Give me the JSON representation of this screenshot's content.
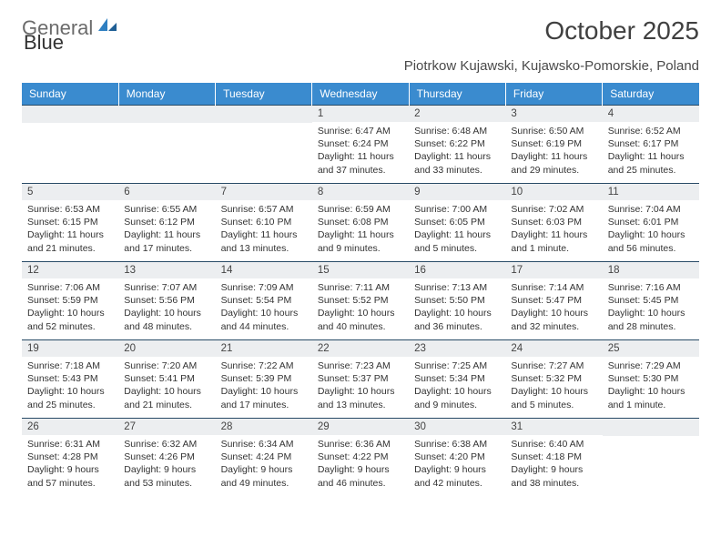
{
  "logo": {
    "word1": "General",
    "word2": "Blue"
  },
  "title": "October 2025",
  "location": "Piotrkow Kujawski, Kujawsko-Pomorskie, Poland",
  "style": {
    "header_bg": "#3a8bcf",
    "header_text": "#ffffff",
    "daynum_band_bg": "#eceef0",
    "rule_color": "#284a66",
    "body_text": "#333333",
    "title_color": "#404040",
    "logo_blue": "#2f7fc1",
    "logo_gray": "#6b6b6b",
    "title_fontsize": 28,
    "subtitle_fontsize": 15,
    "weekday_fontsize": 12,
    "daynum_fontsize": 11.5,
    "celltext_fontsize": 10.5
  },
  "weekdays": [
    "Sunday",
    "Monday",
    "Tuesday",
    "Wednesday",
    "Thursday",
    "Friday",
    "Saturday"
  ],
  "weeks": [
    [
      {
        "n": "",
        "sr": "",
        "ss": "",
        "dl": ""
      },
      {
        "n": "",
        "sr": "",
        "ss": "",
        "dl": ""
      },
      {
        "n": "",
        "sr": "",
        "ss": "",
        "dl": ""
      },
      {
        "n": "1",
        "sr": "Sunrise: 6:47 AM",
        "ss": "Sunset: 6:24 PM",
        "dl": "Daylight: 11 hours and 37 minutes."
      },
      {
        "n": "2",
        "sr": "Sunrise: 6:48 AM",
        "ss": "Sunset: 6:22 PM",
        "dl": "Daylight: 11 hours and 33 minutes."
      },
      {
        "n": "3",
        "sr": "Sunrise: 6:50 AM",
        "ss": "Sunset: 6:19 PM",
        "dl": "Daylight: 11 hours and 29 minutes."
      },
      {
        "n": "4",
        "sr": "Sunrise: 6:52 AM",
        "ss": "Sunset: 6:17 PM",
        "dl": "Daylight: 11 hours and 25 minutes."
      }
    ],
    [
      {
        "n": "5",
        "sr": "Sunrise: 6:53 AM",
        "ss": "Sunset: 6:15 PM",
        "dl": "Daylight: 11 hours and 21 minutes."
      },
      {
        "n": "6",
        "sr": "Sunrise: 6:55 AM",
        "ss": "Sunset: 6:12 PM",
        "dl": "Daylight: 11 hours and 17 minutes."
      },
      {
        "n": "7",
        "sr": "Sunrise: 6:57 AM",
        "ss": "Sunset: 6:10 PM",
        "dl": "Daylight: 11 hours and 13 minutes."
      },
      {
        "n": "8",
        "sr": "Sunrise: 6:59 AM",
        "ss": "Sunset: 6:08 PM",
        "dl": "Daylight: 11 hours and 9 minutes."
      },
      {
        "n": "9",
        "sr": "Sunrise: 7:00 AM",
        "ss": "Sunset: 6:05 PM",
        "dl": "Daylight: 11 hours and 5 minutes."
      },
      {
        "n": "10",
        "sr": "Sunrise: 7:02 AM",
        "ss": "Sunset: 6:03 PM",
        "dl": "Daylight: 11 hours and 1 minute."
      },
      {
        "n": "11",
        "sr": "Sunrise: 7:04 AM",
        "ss": "Sunset: 6:01 PM",
        "dl": "Daylight: 10 hours and 56 minutes."
      }
    ],
    [
      {
        "n": "12",
        "sr": "Sunrise: 7:06 AM",
        "ss": "Sunset: 5:59 PM",
        "dl": "Daylight: 10 hours and 52 minutes."
      },
      {
        "n": "13",
        "sr": "Sunrise: 7:07 AM",
        "ss": "Sunset: 5:56 PM",
        "dl": "Daylight: 10 hours and 48 minutes."
      },
      {
        "n": "14",
        "sr": "Sunrise: 7:09 AM",
        "ss": "Sunset: 5:54 PM",
        "dl": "Daylight: 10 hours and 44 minutes."
      },
      {
        "n": "15",
        "sr": "Sunrise: 7:11 AM",
        "ss": "Sunset: 5:52 PM",
        "dl": "Daylight: 10 hours and 40 minutes."
      },
      {
        "n": "16",
        "sr": "Sunrise: 7:13 AM",
        "ss": "Sunset: 5:50 PM",
        "dl": "Daylight: 10 hours and 36 minutes."
      },
      {
        "n": "17",
        "sr": "Sunrise: 7:14 AM",
        "ss": "Sunset: 5:47 PM",
        "dl": "Daylight: 10 hours and 32 minutes."
      },
      {
        "n": "18",
        "sr": "Sunrise: 7:16 AM",
        "ss": "Sunset: 5:45 PM",
        "dl": "Daylight: 10 hours and 28 minutes."
      }
    ],
    [
      {
        "n": "19",
        "sr": "Sunrise: 7:18 AM",
        "ss": "Sunset: 5:43 PM",
        "dl": "Daylight: 10 hours and 25 minutes."
      },
      {
        "n": "20",
        "sr": "Sunrise: 7:20 AM",
        "ss": "Sunset: 5:41 PM",
        "dl": "Daylight: 10 hours and 21 minutes."
      },
      {
        "n": "21",
        "sr": "Sunrise: 7:22 AM",
        "ss": "Sunset: 5:39 PM",
        "dl": "Daylight: 10 hours and 17 minutes."
      },
      {
        "n": "22",
        "sr": "Sunrise: 7:23 AM",
        "ss": "Sunset: 5:37 PM",
        "dl": "Daylight: 10 hours and 13 minutes."
      },
      {
        "n": "23",
        "sr": "Sunrise: 7:25 AM",
        "ss": "Sunset: 5:34 PM",
        "dl": "Daylight: 10 hours and 9 minutes."
      },
      {
        "n": "24",
        "sr": "Sunrise: 7:27 AM",
        "ss": "Sunset: 5:32 PM",
        "dl": "Daylight: 10 hours and 5 minutes."
      },
      {
        "n": "25",
        "sr": "Sunrise: 7:29 AM",
        "ss": "Sunset: 5:30 PM",
        "dl": "Daylight: 10 hours and 1 minute."
      }
    ],
    [
      {
        "n": "26",
        "sr": "Sunrise: 6:31 AM",
        "ss": "Sunset: 4:28 PM",
        "dl": "Daylight: 9 hours and 57 minutes."
      },
      {
        "n": "27",
        "sr": "Sunrise: 6:32 AM",
        "ss": "Sunset: 4:26 PM",
        "dl": "Daylight: 9 hours and 53 minutes."
      },
      {
        "n": "28",
        "sr": "Sunrise: 6:34 AM",
        "ss": "Sunset: 4:24 PM",
        "dl": "Daylight: 9 hours and 49 minutes."
      },
      {
        "n": "29",
        "sr": "Sunrise: 6:36 AM",
        "ss": "Sunset: 4:22 PM",
        "dl": "Daylight: 9 hours and 46 minutes."
      },
      {
        "n": "30",
        "sr": "Sunrise: 6:38 AM",
        "ss": "Sunset: 4:20 PM",
        "dl": "Daylight: 9 hours and 42 minutes."
      },
      {
        "n": "31",
        "sr": "Sunrise: 6:40 AM",
        "ss": "Sunset: 4:18 PM",
        "dl": "Daylight: 9 hours and 38 minutes."
      },
      {
        "n": "",
        "sr": "",
        "ss": "",
        "dl": ""
      }
    ]
  ]
}
